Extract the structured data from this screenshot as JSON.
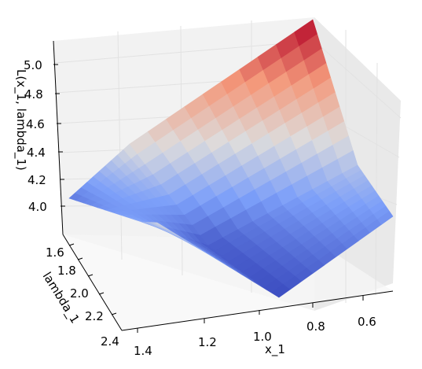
{
  "chart_data": {
    "type": "surface",
    "title": "",
    "xlabel": "x_1",
    "ylabel": "lambda_1",
    "zlabel": "L(x_1, lambda_1)",
    "x_ticks": [
      "1.4",
      "1.2",
      "1.0",
      "0.8",
      "0.6"
    ],
    "y_ticks": [
      "1.6",
      "1.8",
      "2.0",
      "2.2",
      "2.4"
    ],
    "z_ticks": [
      "4.0",
      "4.2",
      "4.4",
      "4.6",
      "4.8",
      "5.0"
    ],
    "xlim": [
      0.5,
      1.5
    ],
    "ylim": [
      1.5,
      2.5
    ],
    "zlim": [
      3.9,
      5.1
    ],
    "colormap": "coolwarm",
    "grid": true,
    "surface": {
      "x": [
        1.5,
        1.0,
        0.5
      ],
      "y": [
        1.5,
        2.0,
        2.5
      ],
      "z": [
        [
          4.05,
          4.5,
          5.05
        ],
        [
          4.25,
          3.95,
          4.35
        ],
        [
          4.45,
          3.9,
          4.15
        ]
      ]
    }
  }
}
